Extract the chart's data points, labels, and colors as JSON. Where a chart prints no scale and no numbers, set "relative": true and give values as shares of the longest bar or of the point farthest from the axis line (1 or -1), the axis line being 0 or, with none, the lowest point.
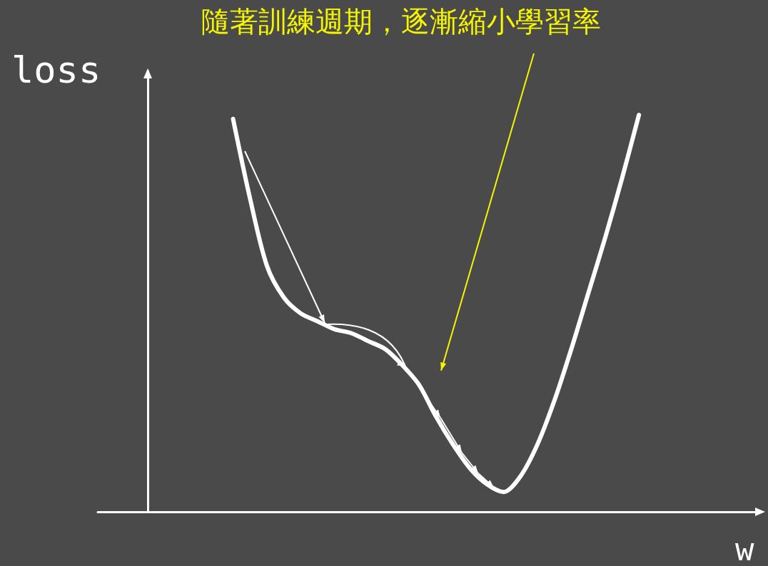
{
  "chart_data": {
    "type": "line",
    "relative": true,
    "xlabel": "w",
    "ylabel": "loss",
    "annotations": [
      "隨著訓練週期，逐漸縮小學習率"
    ],
    "categories": [
      null,
      null,
      null,
      null,
      null,
      null,
      null,
      null,
      null,
      null,
      null,
      null,
      null,
      null,
      null,
      null,
      null,
      null,
      null,
      null,
      null,
      null,
      null,
      null,
      null,
      null,
      null,
      null,
      null,
      null,
      null,
      null,
      null,
      null,
      null,
      null,
      null,
      null,
      null,
      null
    ],
    "color": "#ffffff",
    "values": [
      null,
      null,
      null,
      null,
      null,
      null,
      null,
      null,
      0.99,
      0.79,
      0.62,
      0.54,
      0.5,
      0.48,
      0.46,
      0.45,
      0.43,
      0.41,
      0.37,
      0.32,
      0.24,
      0.17,
      0.11,
      0.07,
      0.05,
      0.09,
      0.17,
      0.28,
      0.41,
      0.55,
      0.69,
      0.84,
      1,
      null,
      null,
      null,
      null,
      null,
      null,
      null
    ]
  }
}
